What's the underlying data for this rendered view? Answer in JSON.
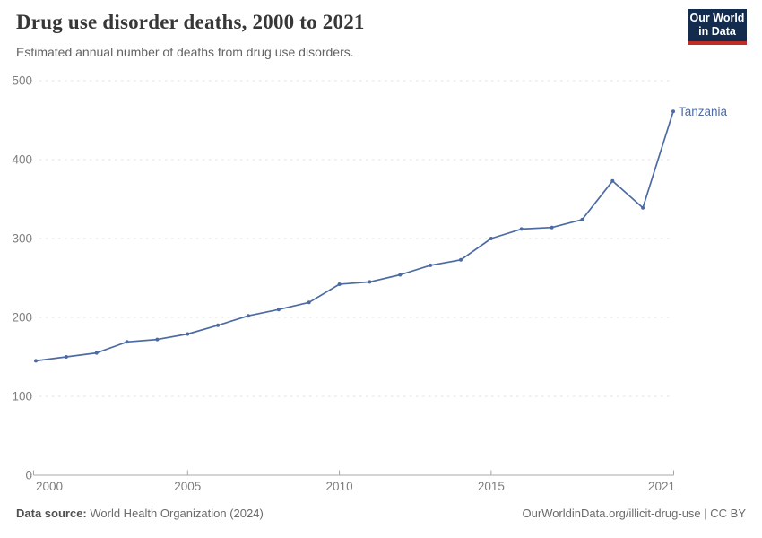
{
  "header": {
    "title": "Drug use disorder deaths, 2000 to 2021",
    "subtitle": "Estimated annual number of deaths from drug use disorders."
  },
  "logo": {
    "line1": "Our World",
    "line2": "in Data",
    "bg_color": "#132c4e",
    "accent_color": "#bf2e26"
  },
  "footer": {
    "source_label": "Data source:",
    "source_text": " World Health Organization (2024)",
    "link_text": "OurWorldinData.org/illicit-drug-use | CC BY"
  },
  "chart_data": {
    "type": "line",
    "title": "Drug use disorder deaths, 2000 to 2021",
    "subtitle": "Estimated annual number of deaths from drug use disorders.",
    "x": [
      2000,
      2001,
      2002,
      2003,
      2004,
      2005,
      2006,
      2007,
      2008,
      2009,
      2010,
      2011,
      2012,
      2013,
      2014,
      2015,
      2016,
      2017,
      2018,
      2019,
      2020,
      2021
    ],
    "series": [
      {
        "name": "Tanzania",
        "color": "#4c6ba3",
        "values": [
          145,
          150,
          155,
          169,
          172,
          179,
          190,
          202,
          210,
          219,
          242,
          245,
          254,
          266,
          273,
          300,
          312,
          314,
          324,
          373,
          339,
          461
        ]
      }
    ],
    "xlabel": "",
    "ylabel": "",
    "ylim": [
      0,
      500
    ],
    "yticks": [
      0,
      100,
      200,
      300,
      400,
      500
    ],
    "xticks": [
      2000,
      2005,
      2010,
      2015,
      2021
    ],
    "grid": "horizontal-dashed",
    "legend": "end-of-line-label",
    "marker": "dot"
  }
}
